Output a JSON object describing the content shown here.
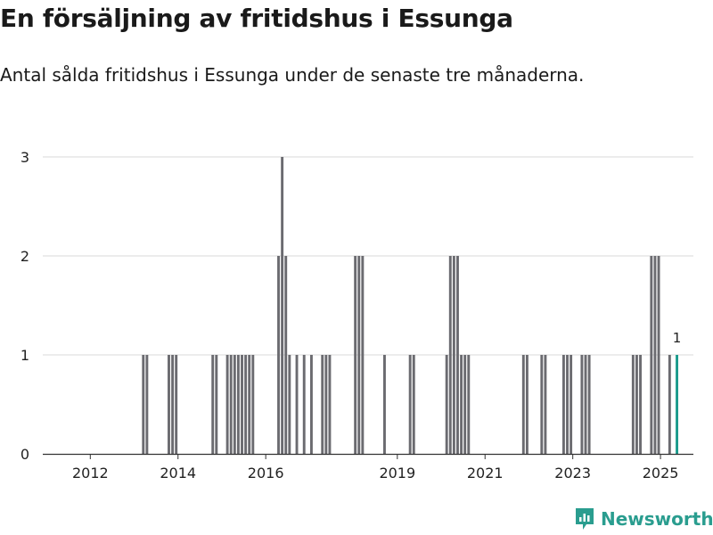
{
  "header": {
    "title": "En försäljning av fritidshus i Essunga",
    "subtitle": "Antal sålda fritidshus i Essunga under de senaste tre månaderna."
  },
  "brand": {
    "name": "Newsworthy",
    "color": "#2a9d8f"
  },
  "colors": {
    "bar": "#6b6b70",
    "highlight": "#1a9b8c",
    "grid": "#d9d9d9",
    "axis": "#333333",
    "text": "#222222"
  },
  "chart_data": {
    "type": "bar",
    "xlabel": "",
    "ylabel": "",
    "ylim": [
      0,
      3
    ],
    "yticks": [
      0,
      1,
      2,
      3
    ],
    "xlim": [
      "2011-06",
      "2026-03"
    ],
    "xticks": [
      "2012",
      "2014",
      "2016",
      "2019",
      "2021",
      "2023",
      "2025"
    ],
    "grid": true,
    "series": [
      {
        "x": [
          "2013-09",
          "2013-10",
          "2014-04",
          "2014-05",
          "2014-06",
          "2015-04",
          "2015-05",
          "2015-08",
          "2015-09",
          "2015-10",
          "2015-11",
          "2015-12",
          "2016-01",
          "2016-02",
          "2016-03",
          "2016-10",
          "2016-11",
          "2016-12",
          "2017-01",
          "2017-03",
          "2017-05",
          "2017-07",
          "2017-10",
          "2017-11",
          "2017-12",
          "2018-07",
          "2018-08",
          "2018-09",
          "2019-03",
          "2019-10",
          "2019-11",
          "2020-08",
          "2020-09",
          "2020-10",
          "2020-11",
          "2020-12",
          "2021-01",
          "2021-02",
          "2022-05",
          "2022-06",
          "2022-10",
          "2022-11",
          "2023-04",
          "2023-05",
          "2023-06",
          "2023-09",
          "2023-10",
          "2023-11",
          "2024-11",
          "2024-12",
          "2025-01",
          "2025-04",
          "2025-05",
          "2025-06",
          "2025-09",
          "2025-11"
        ],
        "values": [
          1,
          1,
          1,
          1,
          1,
          1,
          1,
          1,
          1,
          1,
          1,
          1,
          1,
          1,
          1,
          2,
          3,
          2,
          1,
          1,
          1,
          1,
          1,
          1,
          1,
          2,
          2,
          2,
          1,
          1,
          1,
          1,
          2,
          2,
          2,
          1,
          1,
          1,
          1,
          1,
          1,
          1,
          1,
          1,
          1,
          1,
          1,
          1,
          1,
          1,
          1,
          2,
          2,
          2,
          1,
          1
        ]
      }
    ],
    "annotations": [
      {
        "x": "2025-11",
        "text": "1"
      }
    ]
  }
}
